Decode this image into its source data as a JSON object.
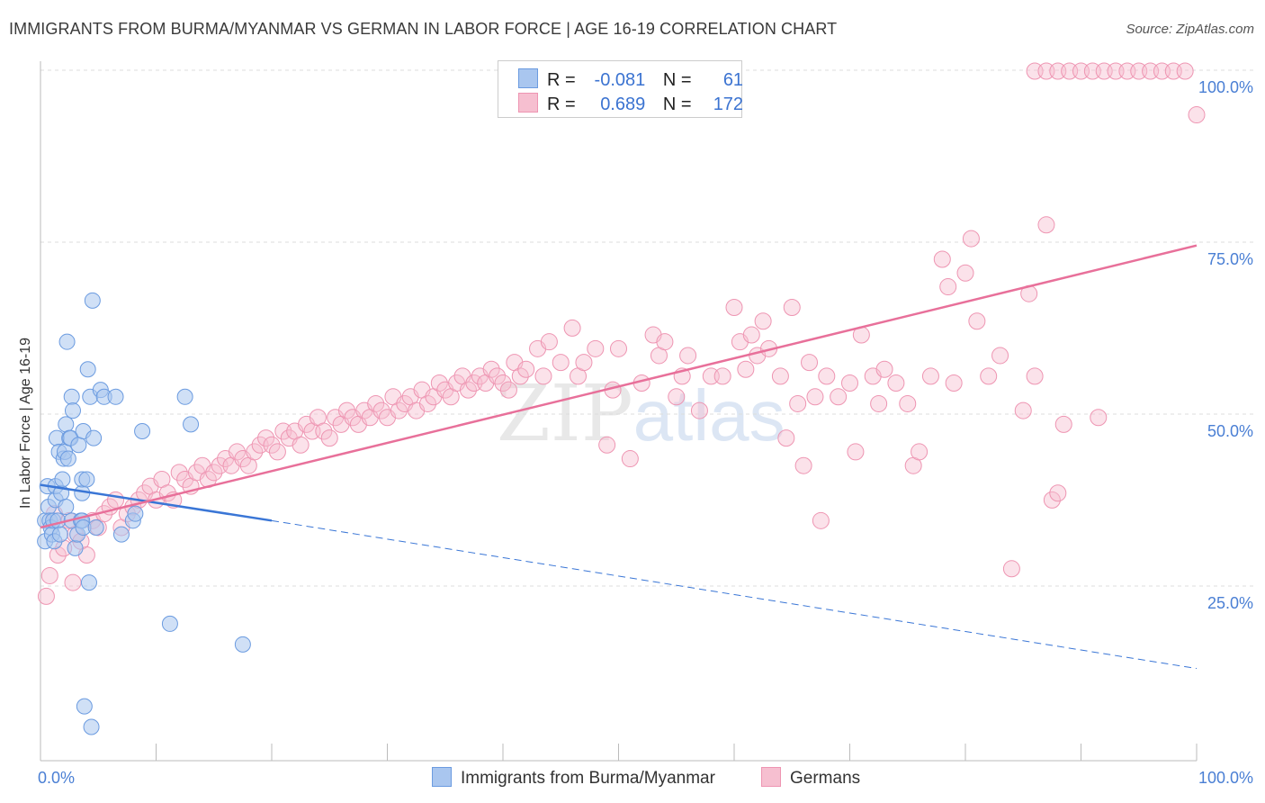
{
  "title": "IMMIGRANTS FROM BURMA/MYANMAR VS GERMAN IN LABOR FORCE | AGE 16-19 CORRELATION CHART",
  "source": "Source: ZipAtlas.com",
  "watermark": {
    "zip": "ZIP",
    "atlas": "atlas"
  },
  "legend": {
    "rows": [
      {
        "r_label": "R =",
        "r_value": "-0.081",
        "n_label": "N =",
        "n_value": "61"
      },
      {
        "r_label": "R =",
        "r_value": "0.689",
        "n_label": "N =",
        "n_value": "172"
      }
    ]
  },
  "bottom_legend": {
    "series1": "Immigrants from Burma/Myanmar",
    "series2": "Germans"
  },
  "colors": {
    "blue_fill": "#a9c6ef",
    "blue_stroke": "#6b9be0",
    "blue_line": "#3a76d6",
    "pink_fill": "#f6bfd0",
    "pink_stroke": "#ee95b2",
    "pink_line": "#e8709a",
    "tick": "#4a7fd4",
    "grid": "#dddddd"
  },
  "chart_data": {
    "type": "scatter",
    "title": "IMMIGRANTS FROM BURMA/MYANMAR VS GERMAN IN LABOR FORCE | AGE 16-19 CORRELATION CHART",
    "xlabel": "",
    "ylabel": "In Labor Force | Age 16-19",
    "xlim": [
      0,
      100
    ],
    "ylim": [
      0,
      105
    ],
    "x_ticks": [
      "0.0%",
      "100.0%"
    ],
    "y_ticks": [
      {
        "v": 25,
        "label": "25.0%"
      },
      {
        "v": 50,
        "label": "50.0%"
      },
      {
        "v": 75,
        "label": "75.0%"
      },
      {
        "v": 100,
        "label": "100.0%"
      }
    ],
    "series": [
      {
        "name": "Immigrants from Burma/Myanmar",
        "color": "blue",
        "trend": {
          "x0": 0,
          "y0": 42.2,
          "x1": 20,
          "y1": 37.0,
          "dash_to_x": 100,
          "dash_to_y": 15.5
        },
        "points": [
          [
            0.4,
            37
          ],
          [
            0.4,
            34
          ],
          [
            0.6,
            42
          ],
          [
            0.7,
            39
          ],
          [
            0.8,
            37
          ],
          [
            0.9,
            36
          ],
          [
            1,
            35
          ],
          [
            1.1,
            37
          ],
          [
            1.2,
            34
          ],
          [
            1.3,
            40
          ],
          [
            1.3,
            42
          ],
          [
            1.4,
            49
          ],
          [
            1.5,
            37
          ],
          [
            1.6,
            47
          ],
          [
            1.7,
            35
          ],
          [
            1.8,
            41
          ],
          [
            1.9,
            43
          ],
          [
            2,
            46
          ],
          [
            2.1,
            47
          ],
          [
            2.2,
            39
          ],
          [
            2.2,
            51
          ],
          [
            2.3,
            63
          ],
          [
            2.4,
            46
          ],
          [
            2.5,
            49
          ],
          [
            2.6,
            49
          ],
          [
            2.7,
            37
          ],
          [
            2.7,
            55
          ],
          [
            2.8,
            53
          ],
          [
            3,
            33
          ],
          [
            3.2,
            35
          ],
          [
            3.3,
            48
          ],
          [
            3.5,
            37
          ],
          [
            3.6,
            37
          ],
          [
            3.6,
            41
          ],
          [
            3.6,
            43
          ],
          [
            3.7,
            50
          ],
          [
            3.7,
            36
          ],
          [
            3.8,
            10
          ],
          [
            4,
            43
          ],
          [
            4.1,
            59
          ],
          [
            4.2,
            28
          ],
          [
            4.3,
            55
          ],
          [
            4.4,
            7
          ],
          [
            4.5,
            69
          ],
          [
            4.6,
            49
          ],
          [
            4.8,
            36
          ],
          [
            5.2,
            56
          ],
          [
            5.5,
            55
          ],
          [
            6.5,
            55
          ],
          [
            7,
            35
          ],
          [
            8,
            37
          ],
          [
            8.2,
            38
          ],
          [
            8.8,
            50
          ],
          [
            11.2,
            22
          ],
          [
            12.5,
            55
          ],
          [
            13,
            51
          ],
          [
            17.5,
            19
          ]
        ]
      },
      {
        "name": "Germans",
        "color": "pink",
        "trend": {
          "x0": 0,
          "y0": 36,
          "x1": 100,
          "y1": 77
        },
        "points": [
          [
            0.5,
            26
          ],
          [
            0.8,
            29
          ],
          [
            1.2,
            38
          ],
          [
            1.5,
            32
          ],
          [
            2,
            33
          ],
          [
            2.5,
            37
          ],
          [
            2.8,
            28
          ],
          [
            3,
            35
          ],
          [
            3.5,
            34
          ],
          [
            4,
            32
          ],
          [
            4.5,
            37
          ],
          [
            5,
            36
          ],
          [
            5.5,
            38
          ],
          [
            6,
            39
          ],
          [
            6.5,
            40
          ],
          [
            7,
            36
          ],
          [
            7.5,
            38
          ],
          [
            8,
            39
          ],
          [
            8.5,
            40
          ],
          [
            9,
            41
          ],
          [
            9.5,
            42
          ],
          [
            10,
            40
          ],
          [
            10.5,
            43
          ],
          [
            11,
            41
          ],
          [
            11.5,
            40
          ],
          [
            12,
            44
          ],
          [
            12.5,
            43
          ],
          [
            13,
            42
          ],
          [
            13.5,
            44
          ],
          [
            14,
            45
          ],
          [
            14.5,
            43
          ],
          [
            15,
            44
          ],
          [
            15.5,
            45
          ],
          [
            16,
            46
          ],
          [
            16.5,
            45
          ],
          [
            17,
            47
          ],
          [
            17.5,
            46
          ],
          [
            18,
            45
          ],
          [
            18.5,
            47
          ],
          [
            19,
            48
          ],
          [
            19.5,
            49
          ],
          [
            20,
            48
          ],
          [
            20.5,
            47
          ],
          [
            21,
            50
          ],
          [
            21.5,
            49
          ],
          [
            22,
            50
          ],
          [
            22.5,
            48
          ],
          [
            23,
            51
          ],
          [
            23.5,
            50
          ],
          [
            24,
            52
          ],
          [
            24.5,
            50
          ],
          [
            25,
            49
          ],
          [
            25.5,
            52
          ],
          [
            26,
            51
          ],
          [
            26.5,
            53
          ],
          [
            27,
            52
          ],
          [
            27.5,
            51
          ],
          [
            28,
            53
          ],
          [
            28.5,
            52
          ],
          [
            29,
            54
          ],
          [
            29.5,
            53
          ],
          [
            30,
            52
          ],
          [
            30.5,
            55
          ],
          [
            31,
            53
          ],
          [
            31.5,
            54
          ],
          [
            32,
            55
          ],
          [
            32.5,
            53
          ],
          [
            33,
            56
          ],
          [
            33.5,
            54
          ],
          [
            34,
            55
          ],
          [
            34.5,
            57
          ],
          [
            35,
            56
          ],
          [
            35.5,
            55
          ],
          [
            36,
            57
          ],
          [
            36.5,
            58
          ],
          [
            37,
            56
          ],
          [
            37.5,
            57
          ],
          [
            38,
            58
          ],
          [
            38.5,
            57
          ],
          [
            39,
            59
          ],
          [
            39.5,
            58
          ],
          [
            40,
            57
          ],
          [
            40.5,
            56
          ],
          [
            41,
            60
          ],
          [
            41.5,
            58
          ],
          [
            42,
            59
          ],
          [
            43,
            62
          ],
          [
            43.5,
            58
          ],
          [
            44,
            63
          ],
          [
            45,
            60
          ],
          [
            46,
            65
          ],
          [
            46.5,
            58
          ],
          [
            47,
            60
          ],
          [
            48,
            62
          ],
          [
            49,
            48
          ],
          [
            49.5,
            56
          ],
          [
            50,
            62
          ],
          [
            51,
            46
          ],
          [
            52,
            57
          ],
          [
            53,
            64
          ],
          [
            53.5,
            61
          ],
          [
            54,
            63
          ],
          [
            55,
            55
          ],
          [
            55.5,
            58
          ],
          [
            56,
            61
          ],
          [
            57,
            53
          ],
          [
            58,
            58
          ],
          [
            59,
            58
          ],
          [
            60,
            68
          ],
          [
            60.5,
            63
          ],
          [
            61,
            59
          ],
          [
            61.5,
            64
          ],
          [
            62,
            61
          ],
          [
            62.5,
            66
          ],
          [
            63,
            62
          ],
          [
            64,
            58
          ],
          [
            64.5,
            49
          ],
          [
            65,
            68
          ],
          [
            65.5,
            54
          ],
          [
            66,
            45
          ],
          [
            66.5,
            60
          ],
          [
            67,
            55
          ],
          [
            67.5,
            37
          ],
          [
            68,
            58
          ],
          [
            69,
            55
          ],
          [
            70,
            57
          ],
          [
            70.5,
            47
          ],
          [
            71,
            64
          ],
          [
            72,
            58
          ],
          [
            72.5,
            54
          ],
          [
            73,
            59
          ],
          [
            74,
            57
          ],
          [
            75,
            54
          ],
          [
            75.5,
            45
          ],
          [
            76,
            47
          ],
          [
            77,
            58
          ],
          [
            78,
            75
          ],
          [
            78.5,
            71
          ],
          [
            79,
            57
          ],
          [
            80,
            73
          ],
          [
            80.5,
            78
          ],
          [
            81,
            66
          ],
          [
            82,
            58
          ],
          [
            83,
            61
          ],
          [
            84,
            30
          ],
          [
            85,
            53
          ],
          [
            85.5,
            70
          ],
          [
            86,
            58
          ],
          [
            87,
            80
          ],
          [
            87.5,
            40
          ],
          [
            88,
            41
          ],
          [
            88.5,
            51
          ],
          [
            91.5,
            52
          ],
          [
            86,
            105
          ],
          [
            87,
            105
          ],
          [
            88,
            105
          ],
          [
            89,
            105
          ],
          [
            90,
            105
          ],
          [
            91,
            105
          ],
          [
            92,
            105
          ],
          [
            93,
            105
          ],
          [
            94,
            105
          ],
          [
            95,
            105
          ],
          [
            96,
            105
          ],
          [
            97,
            105
          ],
          [
            98,
            105
          ],
          [
            99,
            105
          ],
          [
            100,
            96
          ]
        ]
      }
    ]
  }
}
